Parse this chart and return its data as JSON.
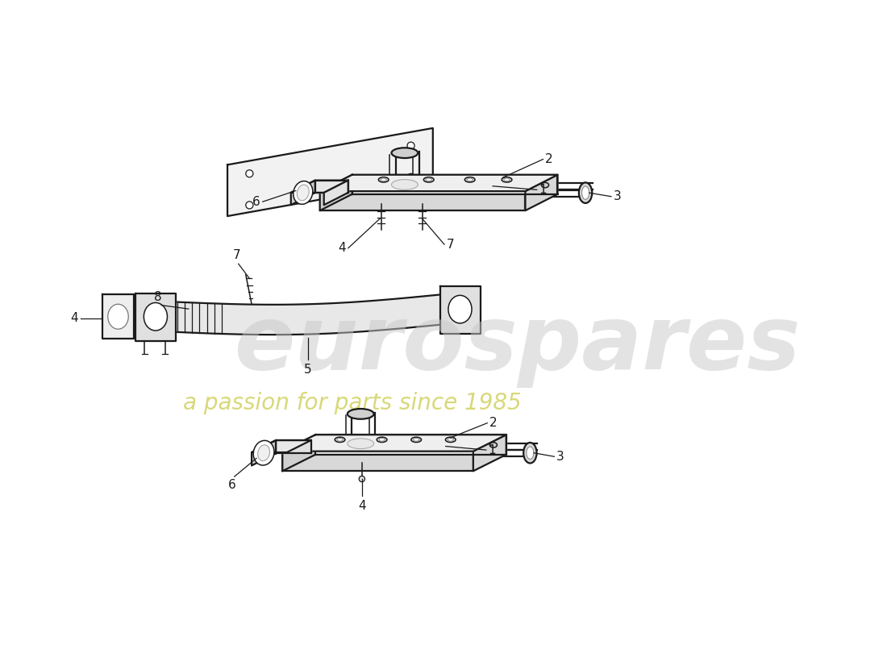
{
  "bg": "#ffffff",
  "lc": "#1a1a1a",
  "wm1": "eurospares",
  "wm2": "a passion for parts since 1985",
  "wm1_color": "#c8c8c8",
  "wm2_color": "#c8c840",
  "wm1_alpha": 0.5,
  "wm2_alpha": 0.7,
  "fig_w": 11.0,
  "fig_h": 8.0,
  "dpi": 100
}
